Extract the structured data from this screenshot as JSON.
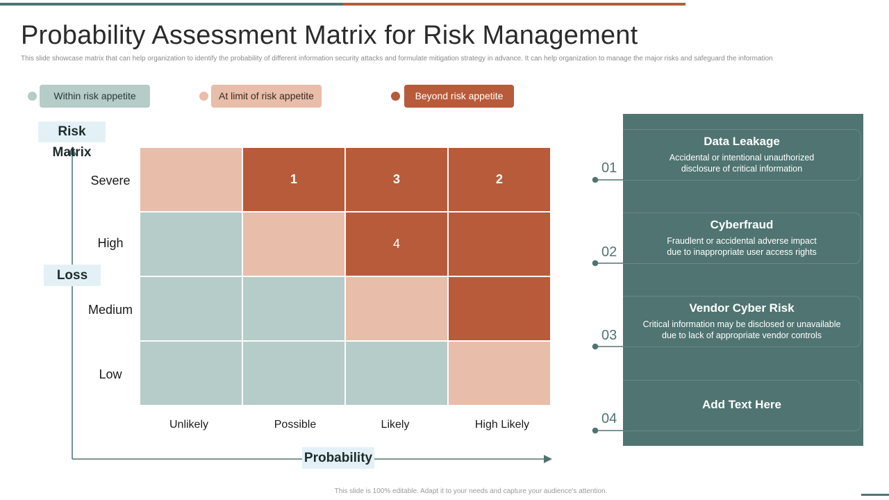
{
  "title": "Probability Assessment Matrix for Risk Management",
  "subtitle": "This slide showcase matrix that can help organization to identify the probability of different information security attacks and formulate mitigation  strategy in advance. It can help organization to manage the major risks and safeguard the information",
  "colors": {
    "within": "#b5ccc8",
    "limit": "#e8bda9",
    "beyond": "#b85b3a",
    "teal": "#4f7471"
  },
  "legend": [
    {
      "label": "Within risk appetite",
      "level": "within"
    },
    {
      "label": "At limit of risk appetite",
      "level": "limit"
    },
    {
      "label": "Beyond risk appetite",
      "level": "beyond"
    }
  ],
  "matrix": {
    "title": "Risk Matrix",
    "y_axis_label": "Loss",
    "x_axis_label": "Probability",
    "rows": [
      "Severe",
      "High",
      "Medium",
      "Low"
    ],
    "columns": [
      "Unlikely",
      "Possible",
      "Likely",
      "High Likely"
    ],
    "cells": [
      [
        {
          "level": "limit",
          "label": ""
        },
        {
          "level": "beyond",
          "label": "1"
        },
        {
          "level": "beyond",
          "label": "3"
        },
        {
          "level": "beyond",
          "label": "2"
        }
      ],
      [
        {
          "level": "within",
          "label": ""
        },
        {
          "level": "limit",
          "label": ""
        },
        {
          "level": "beyond",
          "label": "4"
        },
        {
          "level": "beyond",
          "label": ""
        }
      ],
      [
        {
          "level": "within",
          "label": ""
        },
        {
          "level": "within",
          "label": ""
        },
        {
          "level": "limit",
          "label": ""
        },
        {
          "level": "beyond",
          "label": ""
        }
      ],
      [
        {
          "level": "within",
          "label": ""
        },
        {
          "level": "within",
          "label": ""
        },
        {
          "level": "within",
          "label": ""
        },
        {
          "level": "limit",
          "label": ""
        }
      ]
    ]
  },
  "risks": [
    {
      "number": "01",
      "title": "Data Leakage",
      "description": [
        "Accidental or intentional unauthorized",
        "disclosure of critical information"
      ]
    },
    {
      "number": "02",
      "title": "Cyberfraud",
      "description": [
        "Fraudlent  or accidental adverse  impact",
        "due to inappropriate  user access rights"
      ]
    },
    {
      "number": "03",
      "title": "Vendor Cyber Risk",
      "description": [
        "Critical information  may be disclosed or unavailable",
        "due to lack of appropriate  vendor  controls"
      ]
    },
    {
      "number": "04",
      "title": "Add Text Here",
      "description": []
    }
  ],
  "footer": "This slide is 100% editable.  Adapt it to your needs and capture your audience's attention."
}
